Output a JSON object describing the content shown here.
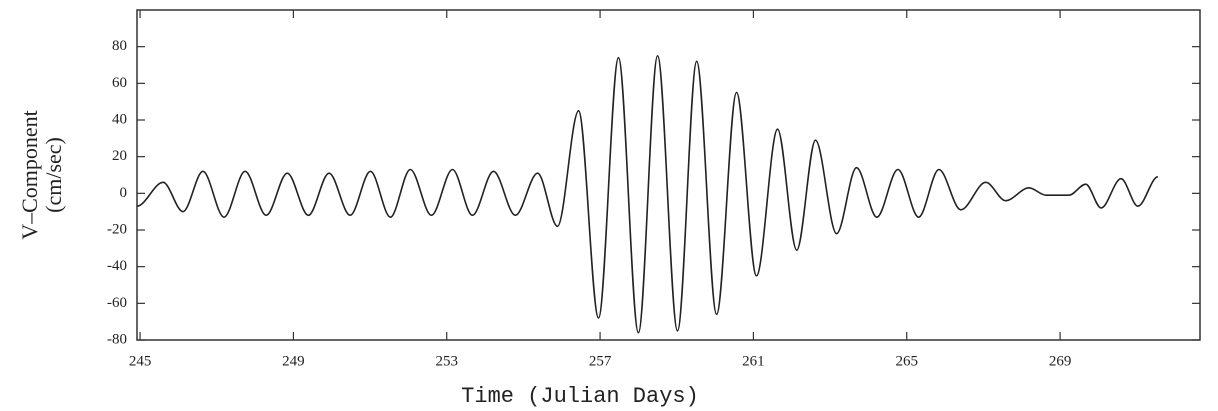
{
  "chart_data": {
    "type": "line",
    "xlabel": "Time (Julian Days)",
    "ylabel": [
      "V–Component",
      "(cm/sec)"
    ],
    "x": [
      244.92,
      245.6,
      246.12,
      246.64,
      247.19,
      247.74,
      248.29,
      248.84,
      249.39,
      249.93,
      250.48,
      251.01,
      251.53,
      252.05,
      252.6,
      253.15,
      253.67,
      254.22,
      254.79,
      255.37,
      255.89,
      256.44,
      256.96,
      257.48,
      258.0,
      258.5,
      259.02,
      259.52,
      260.04,
      260.56,
      261.08,
      261.63,
      262.13,
      262.62,
      263.17,
      263.69,
      264.22,
      264.77,
      265.31,
      265.84,
      266.41,
      267.06,
      267.58,
      268.19,
      268.63,
      269.23,
      269.67,
      270.07,
      270.59,
      271.03,
      271.55
    ],
    "series": [
      {
        "color": "#222222",
        "values": [
          -7,
          6,
          -10,
          12,
          -13,
          12,
          -12,
          11,
          -12,
          11,
          -12,
          12,
          -13,
          13,
          -12,
          13,
          -12,
          12,
          -12,
          11,
          -18,
          45,
          -68,
          74,
          -76,
          75,
          -75,
          72,
          -66,
          55,
          -45,
          35,
          -31,
          29,
          -22,
          14,
          -13,
          13,
          -13,
          13,
          -9,
          6,
          -4,
          3,
          -1,
          -1,
          5,
          -8,
          8,
          -7,
          9
        ]
      }
    ],
    "xlim": [
      244.92,
      272.65
    ],
    "ylim": [
      -80,
      100
    ],
    "xticks": [
      245,
      249,
      253,
      257,
      261,
      265,
      269
    ],
    "yticks": [
      -80,
      -60,
      -40,
      -20,
      0,
      20,
      40,
      60,
      80
    ]
  }
}
